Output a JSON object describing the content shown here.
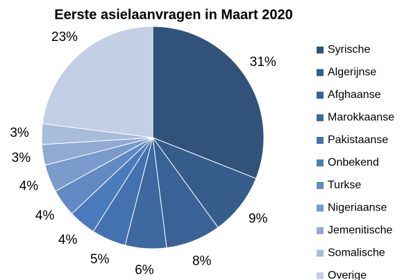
{
  "chart_data": {
    "type": "pie",
    "title": "Eerste asielaanvragen in Maart 2020",
    "categories": [
      "Syrische",
      "Algerijnse",
      "Afghaanse",
      "Marokkaanse",
      "Pakistaanse",
      "Onbekend",
      "Turkse",
      "Nigeriaanse",
      "Jemenitische",
      "Somalische",
      "Overige"
    ],
    "values": [
      31,
      9,
      8,
      6,
      5,
      4,
      4,
      4,
      3,
      3,
      23
    ],
    "value_labels": [
      "31%",
      "9%",
      "8%",
      "6%",
      "5%",
      "4%",
      "4%",
      "4%",
      "3%",
      "3%",
      "23%"
    ],
    "colors": [
      "#31527b",
      "#355c8a",
      "#3a6297",
      "#3d68a0",
      "#4472b0",
      "#4a7bbc",
      "#6189c4",
      "#7a9acb",
      "#91aad2",
      "#a8bcdc",
      "#c3cfe5"
    ],
    "legend": "right"
  }
}
